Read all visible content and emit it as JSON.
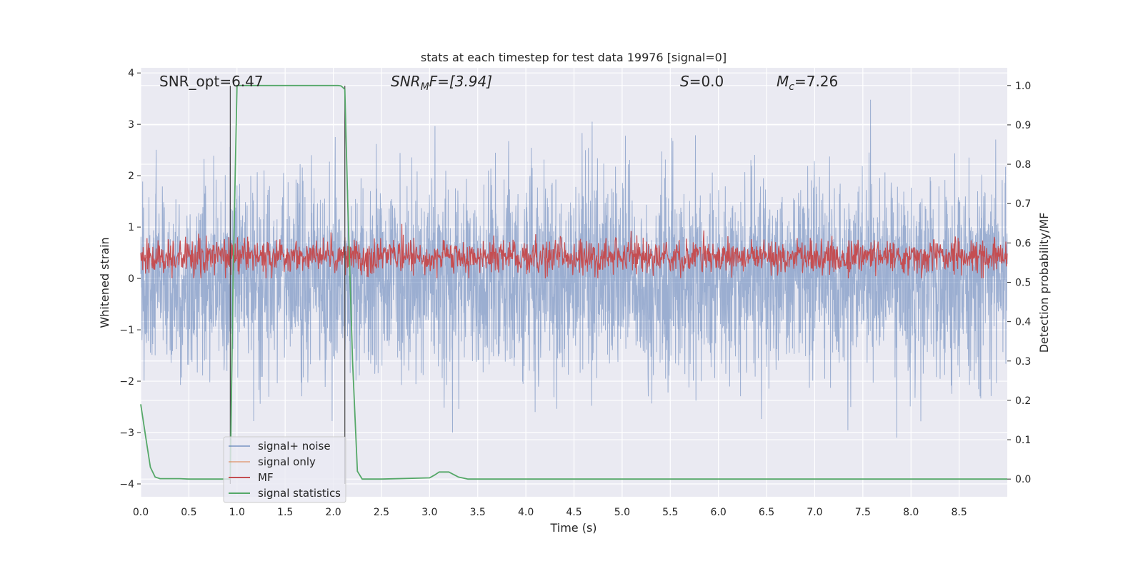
{
  "chart_data": {
    "type": "line",
    "title": "stats at each timestep for test data 19976 [signal=0]",
    "xlabel": "Time (s)",
    "ylabel": "Whitened strain",
    "y2label": "Detection probability/MF",
    "xlim": [
      0.0,
      9.0
    ],
    "ylim": [
      -4.25,
      4.1
    ],
    "y2lim": [
      -0.045,
      1.045
    ],
    "xticks": [
      "0.0",
      "0.5",
      "1.0",
      "1.5",
      "2.0",
      "2.5",
      "3.0",
      "3.5",
      "4.0",
      "4.5",
      "5.0",
      "5.5",
      "6.0",
      "6.5",
      "7.0",
      "7.5",
      "8.0",
      "8.5"
    ],
    "xtick_values": [
      0.0,
      0.5,
      1.0,
      1.5,
      2.0,
      2.5,
      3.0,
      3.5,
      4.0,
      4.5,
      5.0,
      5.5,
      6.0,
      6.5,
      7.0,
      7.5,
      8.0,
      8.5
    ],
    "yticks": [
      "−4",
      "−3",
      "−2",
      "−1",
      "0",
      "1",
      "2",
      "3",
      "4"
    ],
    "ytick_values": [
      -4,
      -3,
      -2,
      -1,
      0,
      1,
      2,
      3,
      4
    ],
    "y2ticks": [
      "0.0",
      "0.1",
      "0.2",
      "0.3",
      "0.4",
      "0.5",
      "0.6",
      "0.7",
      "0.8",
      "0.9",
      "1.0"
    ],
    "y2tick_values": [
      0.0,
      0.1,
      0.2,
      0.3,
      0.4,
      0.5,
      0.6,
      0.7,
      0.8,
      0.9,
      1.0
    ],
    "grid": true,
    "legend_position": "lower-left",
    "annotations": {
      "snr_opt": "SNR_opt=6.47",
      "snr_mf_sym": "SNR",
      "snr_mf_sub": "M",
      "snr_mf_rest": "F=[3.94]",
      "s_sym": "S",
      "s_rest": "=0.0",
      "mc_sym": "M",
      "mc_sub": "c",
      "mc_rest": "=7.26"
    },
    "vlines": [
      {
        "x": 0.93,
        "y_from": -4.0,
        "y_to": 3.75
      },
      {
        "x": 2.12,
        "y_from": -4.0,
        "y_to": 3.75
      }
    ],
    "series": [
      {
        "name": "signal+ noise",
        "color": "#4c72b0",
        "style": "dense noise",
        "axis": "left",
        "envelope": {
          "upper_typical": 2.3,
          "lower_typical": -2.3,
          "max": 3.7,
          "min": -4.0
        }
      },
      {
        "name": "signal only",
        "color": "#dd8452",
        "axis": "left",
        "values": [],
        "note_visible": false
      },
      {
        "name": "MF",
        "color": "#c44e52",
        "style": "dense noise",
        "axis": "right",
        "envelope": {
          "upper_typical": 0.62,
          "lower_typical": 0.51,
          "max": 0.68,
          "min": 0.51
        }
      },
      {
        "name": "signal statistics",
        "color": "#55a868",
        "axis": "right",
        "x": [
          0.0,
          0.05,
          0.1,
          0.15,
          0.2,
          0.3,
          0.4,
          0.5,
          0.9,
          0.93,
          0.96,
          1.0,
          1.5,
          2.0,
          2.05,
          2.08,
          2.1,
          2.12,
          2.15,
          2.2,
          2.25,
          2.3,
          2.5,
          3.0,
          3.05,
          3.1,
          3.2,
          3.3,
          3.4,
          3.5,
          9.0
        ],
        "y": [
          0.19,
          0.11,
          0.03,
          0.005,
          0.001,
          0.001,
          0.001,
          0.0,
          0.0,
          0.0,
          0.52,
          1.0,
          1.0,
          1.0,
          1.0,
          0.999,
          0.995,
          0.99,
          0.7,
          0.3,
          0.02,
          0.0,
          0.0,
          0.003,
          0.01,
          0.018,
          0.018,
          0.005,
          0.0,
          0.0,
          0.0
        ]
      }
    ]
  }
}
